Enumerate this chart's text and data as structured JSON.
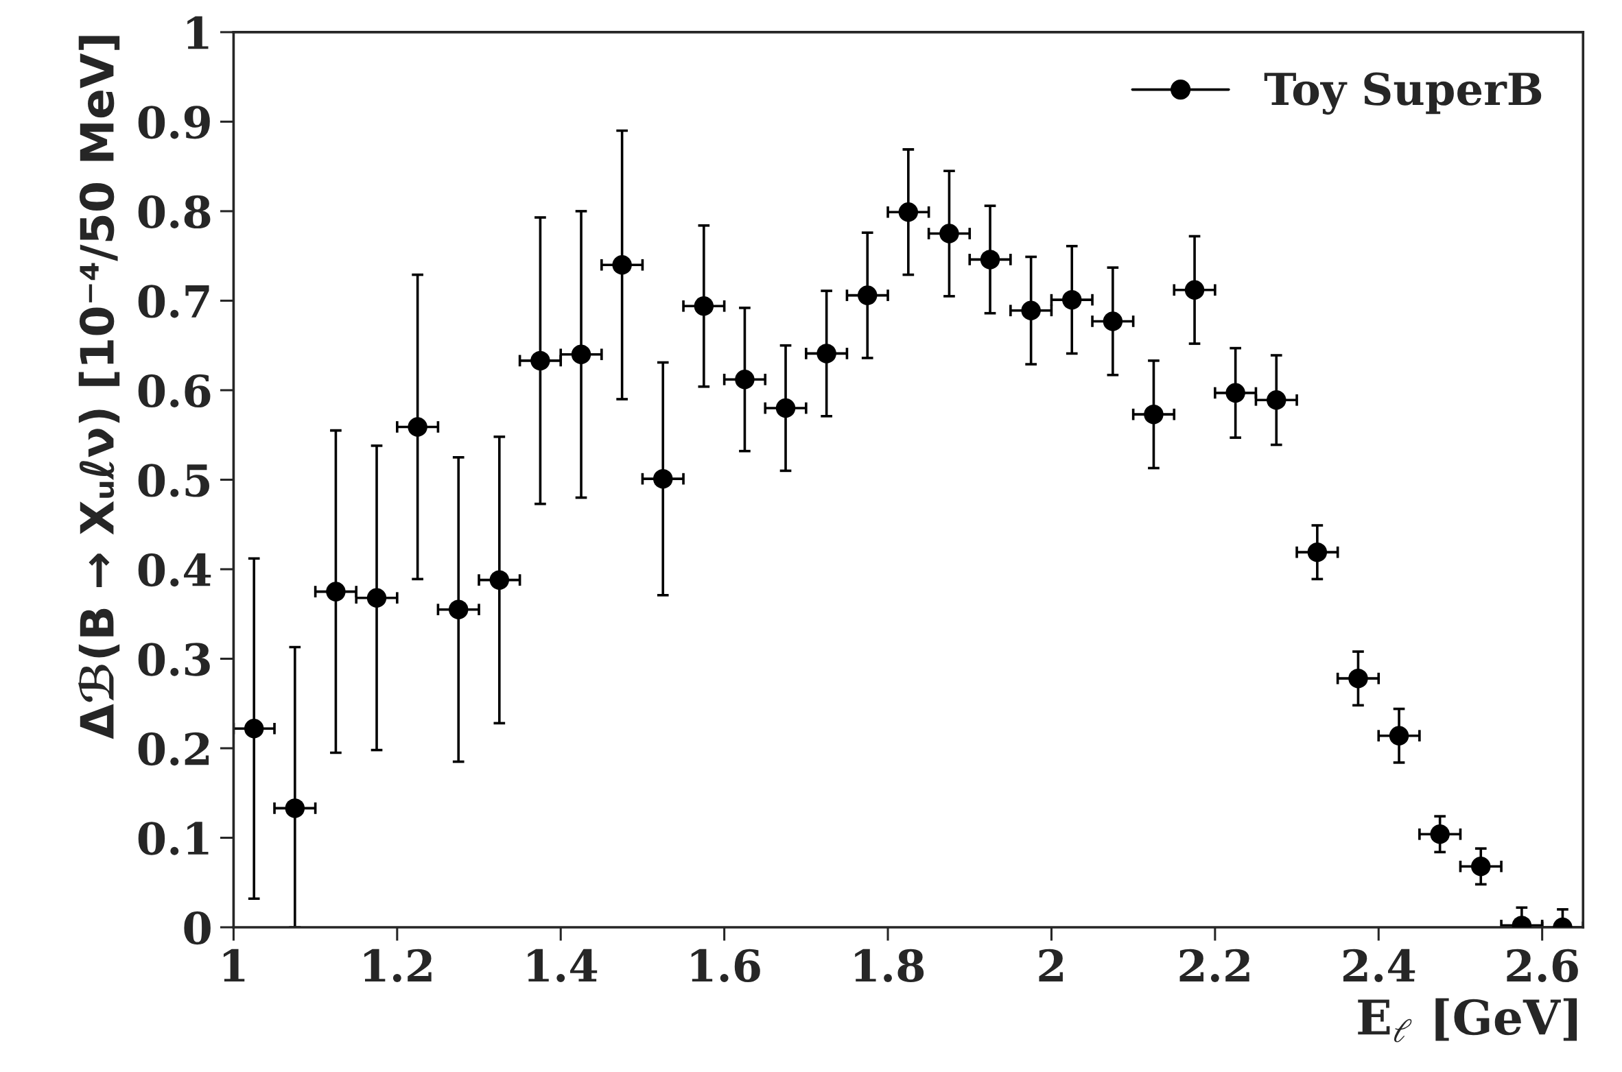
{
  "chart_data": {
    "type": "scatter",
    "xlabel": "E$_{ℓ}$ [GeV]",
    "ylabel": "Δℬ(B → Xᵤℓν) [10⁻⁴/50 MeV]",
    "x": [
      1.025,
      1.075,
      1.125,
      1.175,
      1.225,
      1.275,
      1.325,
      1.375,
      1.425,
      1.475,
      1.525,
      1.575,
      1.625,
      1.675,
      1.725,
      1.775,
      1.825,
      1.875,
      1.925,
      1.975,
      2.025,
      2.075,
      2.125,
      2.175,
      2.225,
      2.275,
      2.325,
      2.375,
      2.425,
      2.475,
      2.525,
      2.575,
      2.625
    ],
    "series": [
      {
        "name": "Toy SuperB",
        "color": "#000000",
        "values": [
          0.222,
          0.133,
          0.375,
          0.368,
          0.559,
          0.355,
          0.388,
          0.633,
          0.64,
          0.74,
          0.501,
          0.694,
          0.612,
          0.58,
          0.641,
          0.706,
          0.799,
          0.775,
          0.746,
          0.689,
          0.701,
          0.677,
          0.573,
          0.712,
          0.597,
          0.589,
          0.419,
          0.278,
          0.214,
          0.104,
          0.068,
          0.002,
          0.0
        ],
        "errors": [
          0.19,
          [
            0,
            0.313
          ],
          0.18,
          0.17,
          0.17,
          0.17,
          0.16,
          0.16,
          0.16,
          0.15,
          0.13,
          0.09,
          0.08,
          0.07,
          0.07,
          0.07,
          0.07,
          0.07,
          0.06,
          0.06,
          0.06,
          0.06,
          0.06,
          0.06,
          0.05,
          0.05,
          0.03,
          0.03,
          0.03,
          0.02,
          0.02,
          [
            0,
            0.022
          ],
          [
            0,
            0.02
          ]
        ],
        "xerrors": [
          0.025,
          0.025,
          0.025,
          0.025,
          0.025,
          0.025,
          0.025,
          0.025,
          0.025,
          0.025,
          0.025,
          0.025,
          0.025,
          0.025,
          0.025,
          0.025,
          0.025,
          0.025,
          0.025,
          0.025,
          0.025,
          0.025,
          0.025,
          0.025,
          0.025,
          0.025,
          0.025,
          0.025,
          0.025,
          0.025,
          0.025,
          0.025,
          0.025
        ]
      }
    ],
    "xlim": [
      1,
      2.65
    ],
    "xticks": [
      1,
      1.2,
      1.4,
      1.6,
      1.8,
      2,
      2.2,
      2.4,
      2.6
    ],
    "ylim": [
      0,
      1
    ],
    "yticks": [
      0,
      0.1,
      0.2,
      0.3,
      0.4,
      0.5,
      0.6,
      0.7,
      0.8,
      0.9,
      1
    ],
    "marker": "circle",
    "legend": "top right",
    "grid": false
  }
}
